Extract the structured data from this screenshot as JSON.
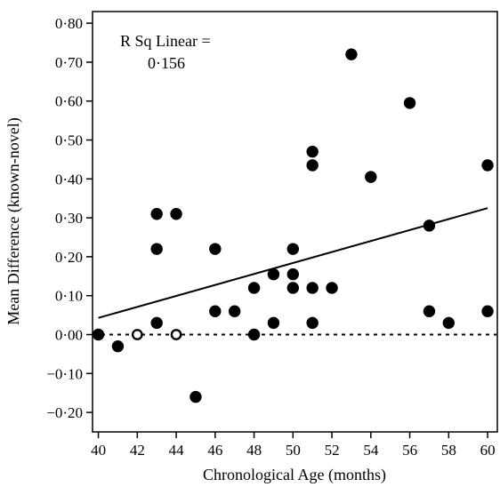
{
  "chart_data": {
    "type": "scatter",
    "title": "",
    "xlabel": "Chronological Age (months)",
    "ylabel": "Mean Difference (known-novel)",
    "xlim": [
      39.7,
      60.5
    ],
    "ylim": [
      -0.25,
      0.83
    ],
    "x_ticks": [
      40,
      42,
      44,
      46,
      48,
      50,
      52,
      54,
      56,
      58,
      60
    ],
    "x_tick_labels": [
      "40",
      "42",
      "44",
      "46",
      "48",
      "50",
      "52",
      "54",
      "56",
      "58",
      "60"
    ],
    "y_ticks": [
      -0.2,
      -0.1,
      0.0,
      0.1,
      0.2,
      0.3,
      0.4,
      0.5,
      0.6,
      0.7,
      0.8
    ],
    "y_tick_labels": [
      "−0·20",
      "−0·10",
      "0·00",
      "0·10",
      "0·20",
      "0·30",
      "0·40",
      "0·50",
      "0·60",
      "0·70",
      "0·80"
    ],
    "annotation_line1": "R Sq Linear =",
    "annotation_line2": "0·156",
    "grid": false,
    "points": [
      {
        "x": 40,
        "y": 0.0,
        "filled": true
      },
      {
        "x": 41,
        "y": -0.03,
        "filled": true
      },
      {
        "x": 42,
        "y": 0.0,
        "filled": false
      },
      {
        "x": 43,
        "y": 0.03,
        "filled": true
      },
      {
        "x": 43,
        "y": 0.22,
        "filled": true
      },
      {
        "x": 43,
        "y": 0.31,
        "filled": true
      },
      {
        "x": 44,
        "y": 0.0,
        "filled": false
      },
      {
        "x": 44,
        "y": 0.31,
        "filled": true
      },
      {
        "x": 45,
        "y": -0.16,
        "filled": true
      },
      {
        "x": 46,
        "y": 0.06,
        "filled": true
      },
      {
        "x": 46,
        "y": 0.22,
        "filled": true
      },
      {
        "x": 47,
        "y": 0.06,
        "filled": true
      },
      {
        "x": 48,
        "y": 0.0,
        "filled": true
      },
      {
        "x": 48,
        "y": 0.12,
        "filled": true
      },
      {
        "x": 49,
        "y": 0.03,
        "filled": true
      },
      {
        "x": 49,
        "y": 0.155,
        "filled": true
      },
      {
        "x": 50,
        "y": 0.12,
        "filled": true
      },
      {
        "x": 50,
        "y": 0.155,
        "filled": true
      },
      {
        "x": 50,
        "y": 0.22,
        "filled": true
      },
      {
        "x": 51,
        "y": 0.03,
        "filled": true
      },
      {
        "x": 51,
        "y": 0.12,
        "filled": true
      },
      {
        "x": 51,
        "y": 0.435,
        "filled": true
      },
      {
        "x": 51,
        "y": 0.47,
        "filled": true
      },
      {
        "x": 52,
        "y": 0.12,
        "filled": true
      },
      {
        "x": 53,
        "y": 0.72,
        "filled": true
      },
      {
        "x": 54,
        "y": 0.405,
        "filled": true
      },
      {
        "x": 56,
        "y": 0.595,
        "filled": true
      },
      {
        "x": 57,
        "y": 0.06,
        "filled": true
      },
      {
        "x": 57,
        "y": 0.28,
        "filled": true
      },
      {
        "x": 58,
        "y": 0.03,
        "filled": true
      },
      {
        "x": 60,
        "y": 0.06,
        "filled": true
      },
      {
        "x": 60,
        "y": 0.435,
        "filled": true
      }
    ],
    "regression_line": {
      "x": [
        40,
        60
      ],
      "y": [
        0.043,
        0.325
      ]
    },
    "reference_line": {
      "y": 0.0,
      "style": "dotted"
    },
    "colors": {
      "filled_marker": "#000000",
      "open_marker_fill": "#ffffff",
      "line": "#000000"
    }
  }
}
